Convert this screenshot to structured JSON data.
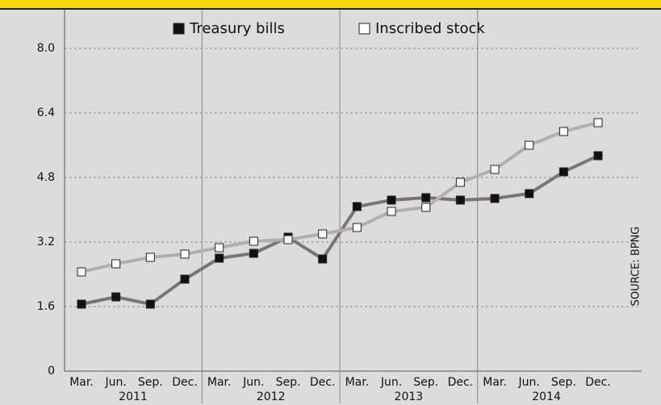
{
  "chart_data": {
    "type": "line",
    "categories": [
      "Mar.",
      "Jun.",
      "Sep.",
      "Dec.",
      "Mar.",
      "Jun.",
      "Sep.",
      "Dec.",
      "Mar.",
      "Jun.",
      "Sep.",
      "Dec.",
      "Mar.",
      "Jun.",
      "Sep.",
      "Dec."
    ],
    "year_labels": [
      "2011",
      "2012",
      "2013",
      "2014"
    ],
    "series": [
      {
        "name": "Treasury bills",
        "color": "#7d7373",
        "marker_fill": "#111111",
        "values": [
          1.66,
          1.84,
          1.66,
          2.28,
          2.8,
          2.92,
          3.32,
          2.78,
          4.08,
          4.24,
          4.3,
          4.24,
          4.28,
          4.4,
          4.94,
          5.34
        ]
      },
      {
        "name": "Inscribed stock",
        "color": "#b3aeac",
        "marker_fill": "#ffffff",
        "values": [
          2.46,
          2.66,
          2.82,
          2.9,
          3.06,
          3.22,
          3.26,
          3.4,
          3.56,
          3.96,
          4.06,
          4.68,
          5.0,
          5.6,
          5.94,
          6.16
        ]
      }
    ],
    "ylim": [
      0,
      8
    ],
    "yticks": [
      0,
      1.6,
      3.2,
      4.8,
      6.4,
      {
        "value": 8,
        "label": "8.0"
      }
    ],
    "grid": true,
    "source": "SOURCE: BPNG"
  }
}
